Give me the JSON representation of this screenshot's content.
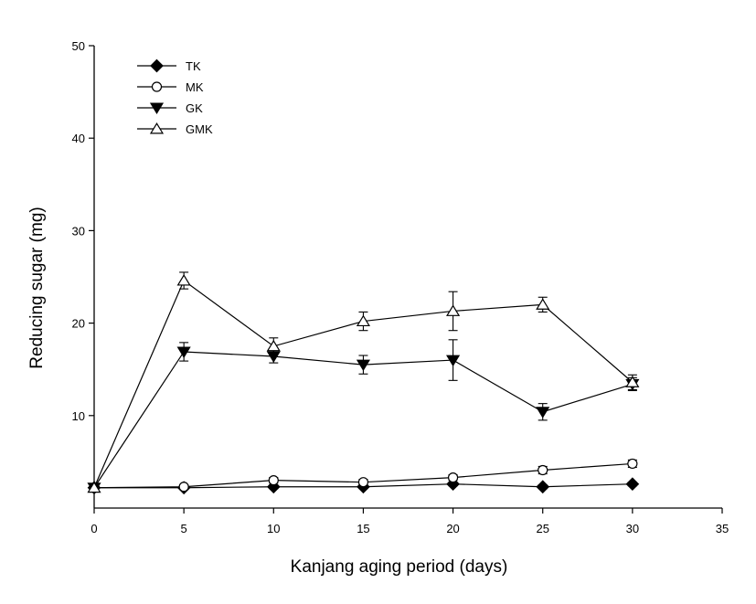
{
  "chart_data": {
    "type": "line",
    "title": "",
    "xlabel": "Kanjang aging period (days)",
    "ylabel": "Reducing sugar (mg)",
    "xlim": [
      0,
      35
    ],
    "ylim": [
      0,
      50
    ],
    "x_ticks": [
      0,
      5,
      10,
      15,
      20,
      25,
      30,
      35
    ],
    "y_ticks": [
      10,
      20,
      30,
      40,
      50
    ],
    "grid": false,
    "legend_position": "top-left",
    "series": [
      {
        "name": "TK",
        "marker": "filled-diamond",
        "x": [
          0,
          5,
          10,
          15,
          20,
          25,
          30
        ],
        "y": [
          2.2,
          2.2,
          2.3,
          2.3,
          2.6,
          2.3,
          2.6
        ],
        "err": [
          0.2,
          0.2,
          0.2,
          0.2,
          0.2,
          0.2,
          0.2
        ]
      },
      {
        "name": "MK",
        "marker": "open-circle",
        "x": [
          0,
          5,
          10,
          15,
          20,
          25,
          30
        ],
        "y": [
          2.2,
          2.3,
          3.0,
          2.8,
          3.3,
          4.1,
          4.8
        ],
        "err": [
          0.2,
          0.2,
          0.3,
          0.3,
          0.3,
          0.4,
          0.4
        ]
      },
      {
        "name": "GK",
        "marker": "filled-triangle-down",
        "x": [
          0,
          5,
          10,
          15,
          20,
          25,
          30
        ],
        "y": [
          2.2,
          16.9,
          16.4,
          15.5,
          16.0,
          10.4,
          13.4
        ],
        "err": [
          0.2,
          1.0,
          0.7,
          1.0,
          2.2,
          0.9,
          0.7
        ]
      },
      {
        "name": "GMK",
        "marker": "open-triangle-up",
        "x": [
          0,
          5,
          10,
          15,
          20,
          25,
          30
        ],
        "y": [
          2.2,
          24.6,
          17.5,
          20.2,
          21.3,
          22.0,
          13.6
        ],
        "err": [
          0.2,
          0.9,
          0.9,
          1.0,
          2.1,
          0.8,
          0.8
        ]
      }
    ]
  }
}
